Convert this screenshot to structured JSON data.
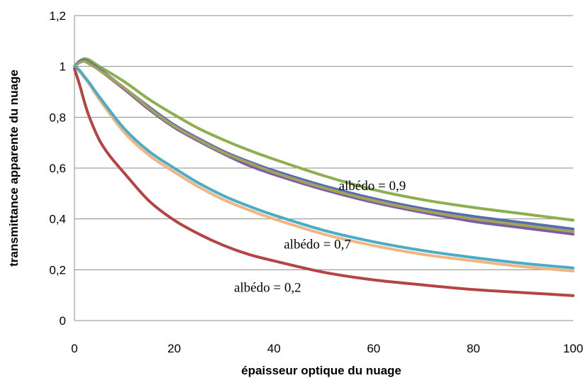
{
  "chart_data": {
    "type": "line",
    "title": "",
    "xlabel": "épaisseur optique du nuage",
    "ylabel": "transmittance  apparente  du  nuage",
    "xlim": [
      0,
      100
    ],
    "ylim": [
      0,
      1.2
    ],
    "grid": true,
    "x_ticks": [
      0,
      20,
      40,
      60,
      80,
      100
    ],
    "x_tick_labels": [
      "0",
      "20",
      "40",
      "60",
      "80",
      "100"
    ],
    "y_ticks": [
      0,
      0.2,
      0.4,
      0.6,
      0.8,
      1.0,
      1.2
    ],
    "y_tick_labels": [
      "0",
      "0,2",
      "0,4",
      "0,6",
      "0,8",
      "1",
      "1,2"
    ],
    "series": [
      {
        "color": "#8cb04f",
        "x": [
          0,
          1,
          2,
          3,
          5,
          10,
          15,
          20,
          25,
          30,
          35,
          40,
          50,
          60,
          70,
          80,
          90,
          100
        ],
        "y": [
          1.0,
          1.02,
          1.03,
          1.025,
          1.0,
          0.94,
          0.87,
          0.81,
          0.755,
          0.71,
          0.67,
          0.635,
          0.57,
          0.515,
          0.475,
          0.445,
          0.42,
          0.395
        ]
      },
      {
        "color": "#7a5da6",
        "x": [
          0,
          1,
          2,
          3,
          5,
          10,
          15,
          20,
          25,
          30,
          35,
          40,
          50,
          60,
          70,
          80,
          90,
          100
        ],
        "y": [
          1.0,
          1.02,
          1.02,
          1.01,
          0.985,
          0.91,
          0.83,
          0.76,
          0.705,
          0.655,
          0.61,
          0.575,
          0.515,
          0.465,
          0.425,
          0.39,
          0.365,
          0.34
        ]
      },
      {
        "color": "#4f6fb0",
        "x": [
          0,
          1,
          2,
          3,
          5,
          10,
          15,
          20,
          25,
          30,
          35,
          40,
          50,
          60,
          70,
          80,
          90,
          100
        ],
        "y": [
          1.0,
          1.02,
          1.025,
          1.015,
          0.99,
          0.915,
          0.84,
          0.77,
          0.715,
          0.665,
          0.625,
          0.59,
          0.53,
          0.48,
          0.44,
          0.41,
          0.385,
          0.36
        ]
      },
      {
        "color": "#a5a05a",
        "x": [
          0,
          1,
          2,
          3,
          5,
          10,
          15,
          20,
          25,
          30,
          35,
          40,
          50,
          60,
          70,
          80,
          90,
          100
        ],
        "y": [
          1.0,
          1.015,
          1.02,
          1.01,
          0.985,
          0.915,
          0.835,
          0.765,
          0.71,
          0.66,
          0.62,
          0.583,
          0.522,
          0.472,
          0.432,
          0.4,
          0.375,
          0.35
        ]
      },
      {
        "color": "#f2b483",
        "x": [
          0,
          1,
          2,
          3,
          5,
          10,
          15,
          20,
          25,
          30,
          35,
          40,
          50,
          60,
          70,
          80,
          90,
          100
        ],
        "y": [
          1.0,
          0.98,
          0.955,
          0.93,
          0.87,
          0.74,
          0.65,
          0.585,
          0.525,
          0.475,
          0.435,
          0.4,
          0.34,
          0.295,
          0.26,
          0.235,
          0.212,
          0.195
        ]
      },
      {
        "color": "#4bacc6",
        "x": [
          0,
          1,
          2,
          3,
          5,
          10,
          15,
          20,
          25,
          30,
          35,
          40,
          50,
          60,
          70,
          80,
          90,
          100
        ],
        "y": [
          1.0,
          0.985,
          0.96,
          0.935,
          0.88,
          0.755,
          0.665,
          0.6,
          0.54,
          0.49,
          0.45,
          0.415,
          0.355,
          0.31,
          0.275,
          0.248,
          0.225,
          0.207
        ]
      },
      {
        "color": "#b54444",
        "x": [
          0,
          1,
          2,
          3,
          5,
          7,
          10,
          15,
          20,
          25,
          30,
          35,
          40,
          50,
          60,
          70,
          80,
          90,
          100
        ],
        "y": [
          0.99,
          0.93,
          0.86,
          0.8,
          0.71,
          0.65,
          0.58,
          0.47,
          0.395,
          0.34,
          0.295,
          0.26,
          0.235,
          0.19,
          0.16,
          0.14,
          0.122,
          0.11,
          0.098
        ]
      }
    ],
    "annotations": [
      {
        "text": "albédo = 0,9",
        "x": 53,
        "y": 0.53
      },
      {
        "text": "albédo = 0,7",
        "x": 42,
        "y": 0.3
      },
      {
        "text": "albédo = 0,2",
        "x": 32,
        "y": 0.13
      }
    ]
  }
}
